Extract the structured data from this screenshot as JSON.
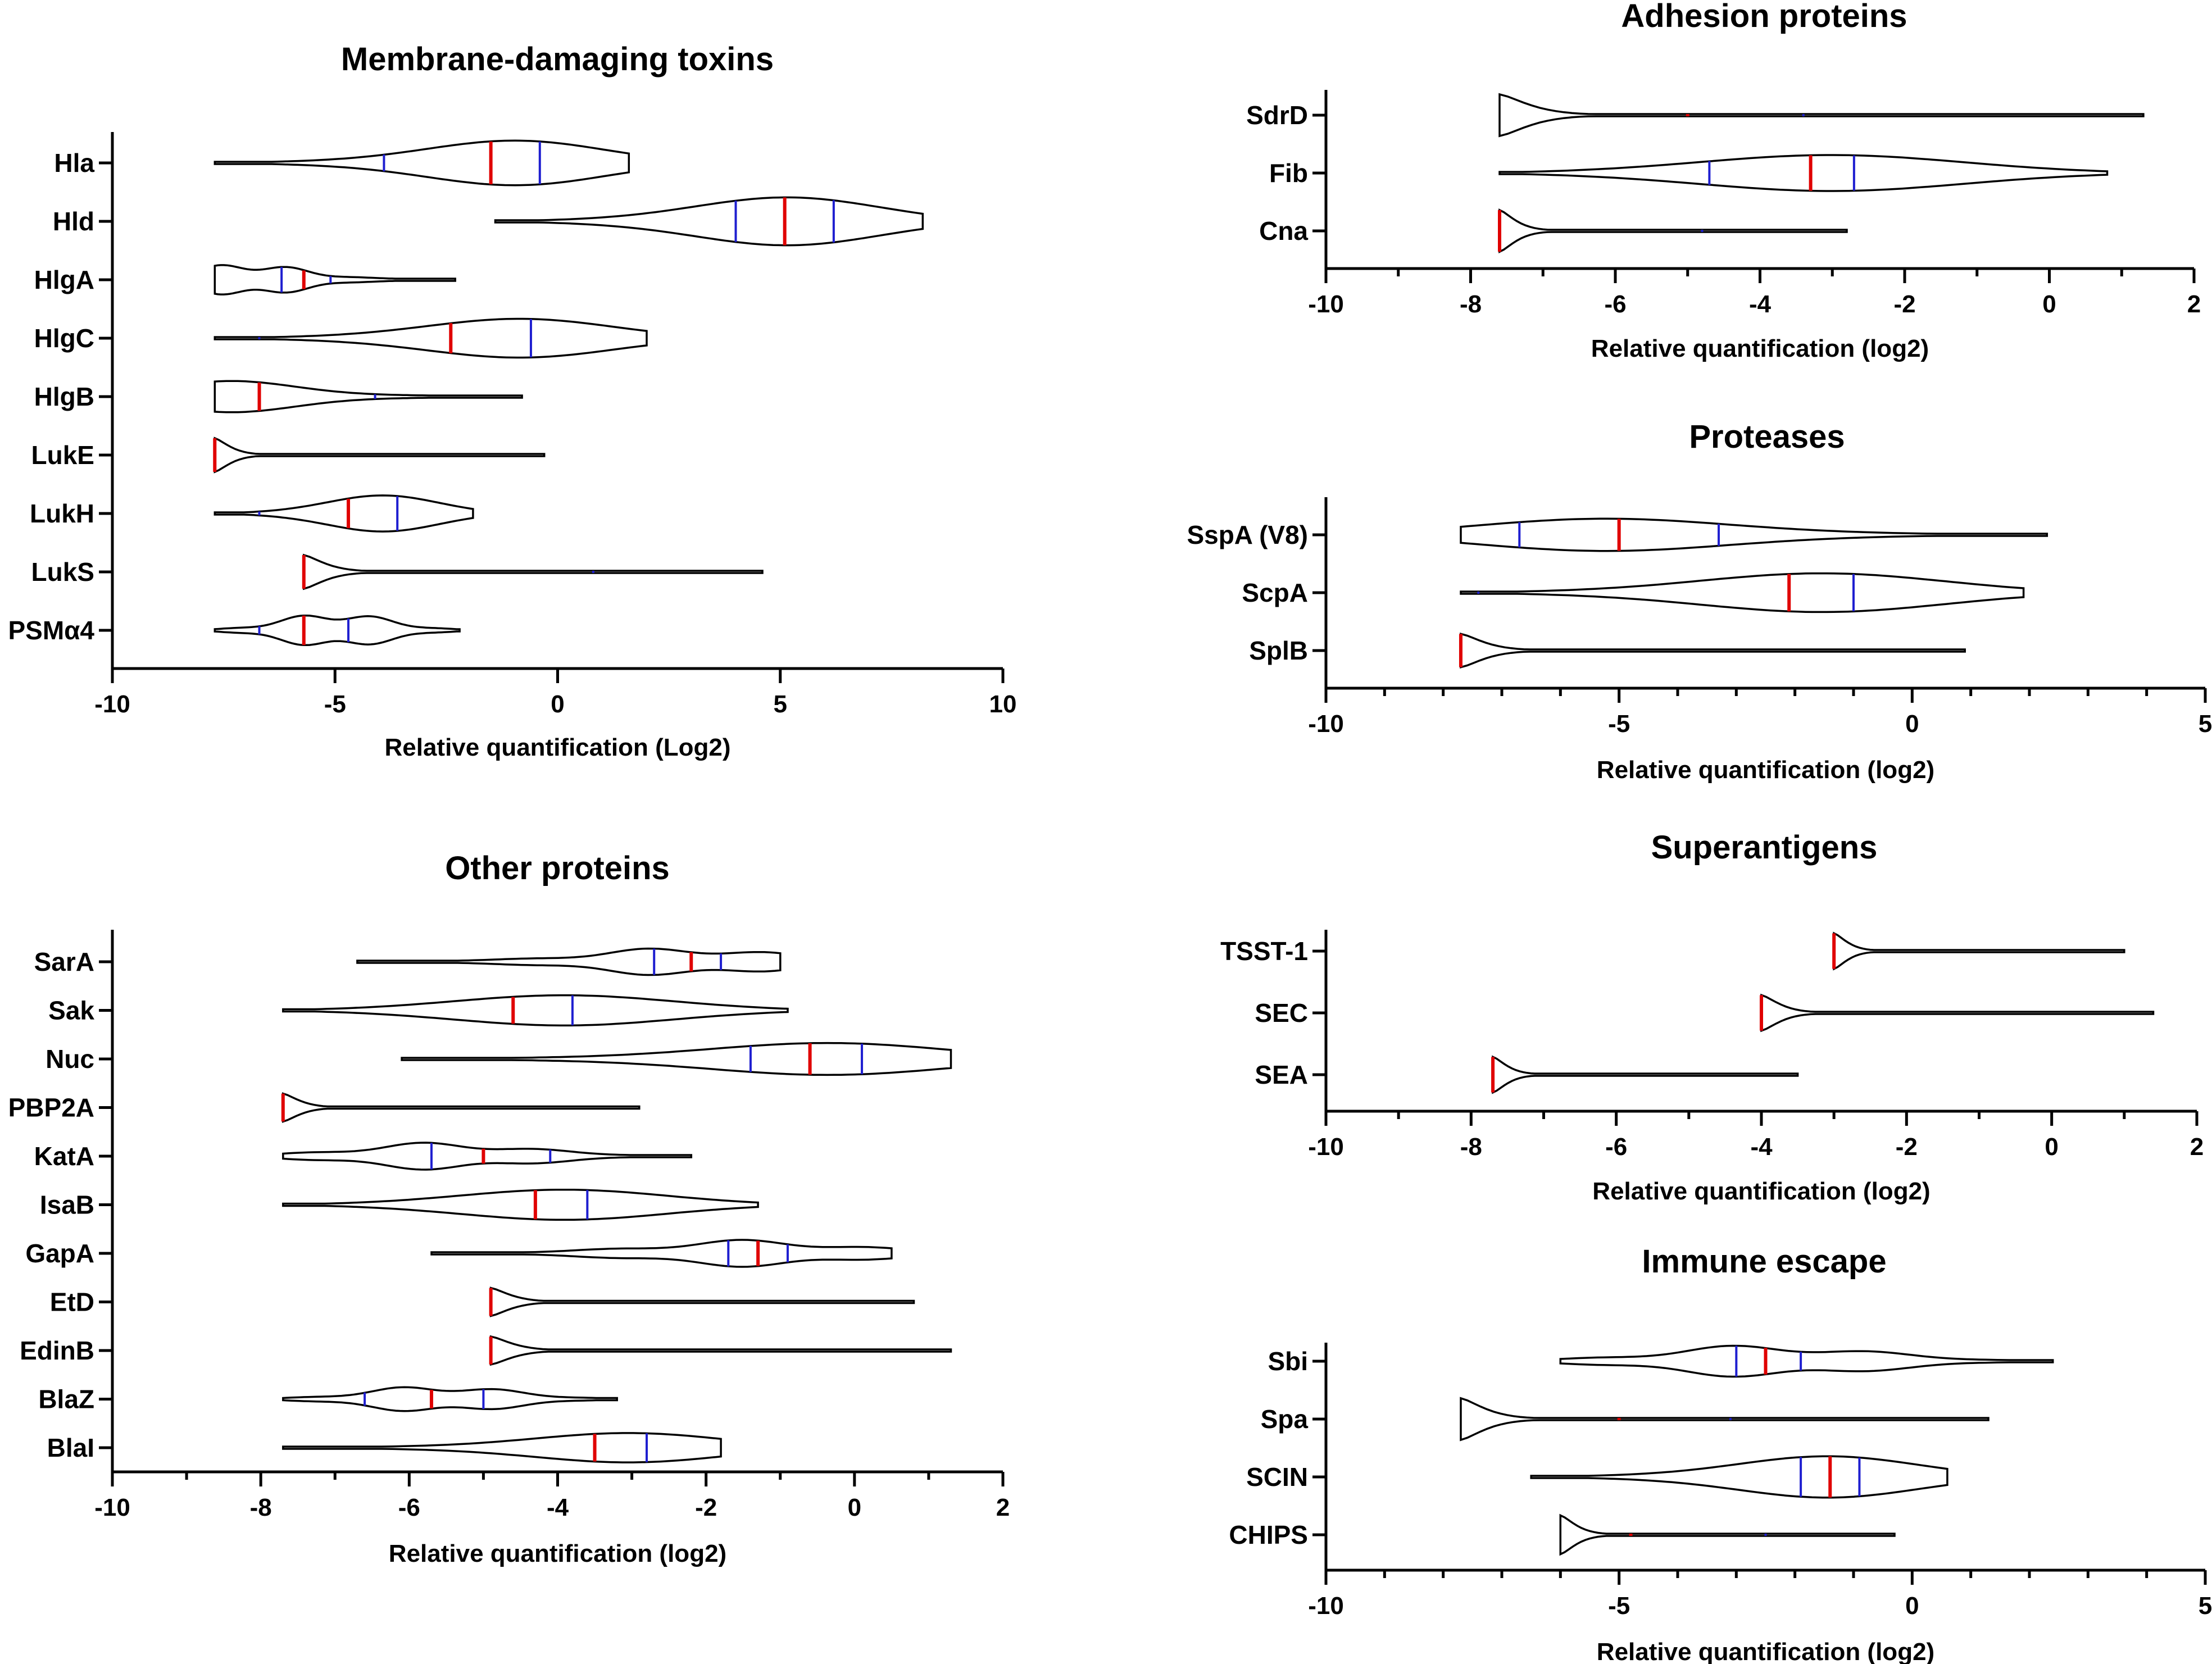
{
  "figure": {
    "colors": {
      "median": "#e00000",
      "quartile": "#1f1fd0",
      "outline": "#000000",
      "background": "#ffffff"
    }
  },
  "chart_data": [
    {
      "id": "membrane",
      "type": "violin",
      "title": "Membrane-damaging toxins",
      "xlabel": "Relative quantification (Log2)",
      "xlim": [
        -10,
        10
      ],
      "xticks": [
        -10,
        -5,
        0,
        5,
        10
      ],
      "tick_labels": [
        "-10",
        "-5",
        "0",
        "5",
        "10"
      ],
      "minor_ticks": 0,
      "series": [
        {
          "name": "Hla",
          "min": -7.7,
          "max": 1.6,
          "q1": -3.9,
          "median": -1.5,
          "q3": -0.4,
          "peak": -0.9,
          "hw": 0.75
        },
        {
          "name": "Hld",
          "min": -1.4,
          "max": 8.2,
          "q1": 4.0,
          "median": 5.1,
          "q3": 6.2,
          "peak": 5.2,
          "hw": 0.8
        },
        {
          "name": "HlgA",
          "min": -7.7,
          "max": -2.3,
          "q1": -6.2,
          "median": -5.7,
          "q3": -5.1,
          "peak": -7.0,
          "hw": 0.6,
          "wavy": true
        },
        {
          "name": "HlgC",
          "min": -7.7,
          "max": 2.0,
          "q1": -6.7,
          "median": -2.4,
          "q3": -0.6,
          "peak": -0.8,
          "hw": 0.65
        },
        {
          "name": "HlgB",
          "min": -7.7,
          "max": -0.8,
          "q1": -6.7,
          "median": -6.7,
          "q3": -4.1,
          "peak": -7.4,
          "hw": 0.55
        },
        {
          "name": "LukE",
          "min": -7.7,
          "max": -0.3,
          "q1": -7.7,
          "median": -7.7,
          "q3": -7.7,
          "peak": -7.7,
          "hw": 0.6,
          "spike": true
        },
        {
          "name": "LukH",
          "min": -7.7,
          "max": -1.9,
          "q1": -6.7,
          "median": -4.7,
          "q3": -3.6,
          "peak": -3.9,
          "hw": 0.6
        },
        {
          "name": "LukS",
          "min": -5.7,
          "max": 4.6,
          "q1": -5.7,
          "median": -5.7,
          "q3": 0.8,
          "peak": -5.7,
          "hw": 0.6,
          "spike": true
        },
        {
          "name": "PSMα4",
          "min": -7.7,
          "max": -2.2,
          "q1": -6.7,
          "median": -5.7,
          "q3": -4.7,
          "peak": -5.0,
          "hw": 0.6,
          "wavy": true
        }
      ]
    },
    {
      "id": "adhesion",
      "type": "violin",
      "title": "Adhesion proteins",
      "xlabel": "Relative quantification (log2)",
      "xlim": [
        -10,
        2
      ],
      "xticks": [
        -10,
        -8,
        -6,
        -4,
        -2,
        0,
        2
      ],
      "tick_labels": [
        "-10",
        "-8",
        "-6",
        "-4",
        "-2",
        "0",
        "2"
      ],
      "minor_ticks": 1,
      "series": [
        {
          "name": "SdrD",
          "min": -7.6,
          "max": 1.3,
          "q1": -5.0,
          "median": -5.0,
          "q3": -3.4,
          "peak": -7.6,
          "hw": 0.75,
          "spike": true
        },
        {
          "name": "Fib",
          "min": -7.6,
          "max": 0.8,
          "q1": -4.7,
          "median": -3.3,
          "q3": -2.7,
          "peak": -3.0,
          "hw": 0.6
        },
        {
          "name": "Cna",
          "min": -7.6,
          "max": -2.8,
          "q1": -7.6,
          "median": -7.6,
          "q3": -4.8,
          "peak": -7.6,
          "hw": 0.75,
          "spike": true
        }
      ]
    },
    {
      "id": "proteases",
      "type": "violin",
      "title": "Proteases",
      "xlabel": "Relative quantification (log2)",
      "xlim": [
        -10,
        5
      ],
      "xticks": [
        -10,
        -5,
        0,
        5
      ],
      "tick_labels": [
        "-10",
        "-5",
        "0",
        "5"
      ],
      "minor_ticks": 4,
      "series": [
        {
          "name": "SspA (V8)",
          "min": -7.7,
          "max": 2.3,
          "q1": -6.7,
          "median": -5.0,
          "q3": -3.3,
          "peak": -5.3,
          "hw": 0.55
        },
        {
          "name": "ScpA",
          "min": -7.7,
          "max": 1.9,
          "q1": -7.4,
          "median": -2.1,
          "q3": -1.0,
          "peak": -1.5,
          "hw": 0.65
        },
        {
          "name": "SplB",
          "min": -7.7,
          "max": 0.9,
          "q1": -7.7,
          "median": -7.7,
          "q3": -7.7,
          "peak": -7.7,
          "hw": 0.6,
          "spike": true
        }
      ]
    },
    {
      "id": "superantigens",
      "type": "violin",
      "title": "Superantigens",
      "xlabel": "Relative quantification (log2)",
      "xlim": [
        -10,
        2
      ],
      "xticks": [
        -10,
        -8,
        -6,
        -4,
        -2,
        0,
        2
      ],
      "tick_labels": [
        "-10",
        "-8",
        "-6",
        "-4",
        "-2",
        "0",
        "2"
      ],
      "minor_ticks": 1,
      "series": [
        {
          "name": "TSST-1",
          "min": -3.0,
          "max": 1.0,
          "q1": -3.0,
          "median": -3.0,
          "q3": -3.0,
          "peak": -3.0,
          "hw": 0.6,
          "spike": true
        },
        {
          "name": "SEC",
          "min": -4.0,
          "max": 1.4,
          "q1": -4.0,
          "median": -4.0,
          "q3": -4.0,
          "peak": -4.0,
          "hw": 0.6,
          "spike": true
        },
        {
          "name": "SEA",
          "min": -7.7,
          "max": -3.5,
          "q1": -7.7,
          "median": -7.7,
          "q3": -7.7,
          "peak": -7.7,
          "hw": 0.6,
          "spike": true
        }
      ]
    },
    {
      "id": "immune",
      "type": "violin",
      "title": "Immune escape",
      "xlabel": "Relative quantification (log2)",
      "xlim": [
        -10,
        5
      ],
      "xticks": [
        -10,
        -5,
        0,
        5
      ],
      "tick_labels": [
        "-10",
        "-5",
        "0",
        "5"
      ],
      "minor_ticks": 4,
      "series": [
        {
          "name": "Sbi",
          "min": -6.0,
          "max": 2.4,
          "q1": -3.0,
          "median": -2.5,
          "q3": -1.9,
          "peak": -2.5,
          "hw": 0.55,
          "wavy": true
        },
        {
          "name": "Spa",
          "min": -7.7,
          "max": 1.3,
          "q1": -5.0,
          "median": -5.0,
          "q3": -3.1,
          "peak": -7.7,
          "hw": 0.75,
          "spike": true
        },
        {
          "name": "SCIN",
          "min": -6.5,
          "max": 0.6,
          "q1": -1.9,
          "median": -1.4,
          "q3": -0.9,
          "peak": -1.4,
          "hw": 0.7
        },
        {
          "name": "CHIPS",
          "min": -6.0,
          "max": -0.3,
          "q1": -4.8,
          "median": -4.8,
          "q3": -2.5,
          "peak": -6.0,
          "hw": 0.7,
          "spike": true
        }
      ]
    },
    {
      "id": "other",
      "type": "violin",
      "title": "Other proteins",
      "xlabel": "Relative quantification (log2)",
      "xlim": [
        -10,
        2
      ],
      "xticks": [
        -10,
        -8,
        -6,
        -4,
        -2,
        0,
        2
      ],
      "tick_labels": [
        "-10",
        "-8",
        "-6",
        "-4",
        "-2",
        "0",
        "2"
      ],
      "minor_ticks": 1,
      "series": [
        {
          "name": "SarA",
          "min": -6.7,
          "max": -1.0,
          "q1": -2.7,
          "median": -2.2,
          "q3": -1.8,
          "peak": -2.2,
          "hw": 0.6,
          "wavy": true
        },
        {
          "name": "Sak",
          "min": -7.7,
          "max": -0.9,
          "q1": -4.6,
          "median": -4.6,
          "q3": -3.8,
          "peak": -3.9,
          "hw": 0.6
        },
        {
          "name": "Nuc",
          "min": -6.1,
          "max": 1.3,
          "q1": -1.4,
          "median": -0.6,
          "q3": 0.1,
          "peak": -0.3,
          "hw": 0.65
        },
        {
          "name": "PBP2A",
          "min": -7.7,
          "max": -2.9,
          "q1": -7.7,
          "median": -7.7,
          "q3": -7.7,
          "peak": -7.7,
          "hw": 0.6,
          "spike": true
        },
        {
          "name": "KatA",
          "min": -7.7,
          "max": -2.2,
          "q1": -5.7,
          "median": -5.0,
          "q3": -4.1,
          "peak": -5.6,
          "hw": 0.55,
          "wavy": true
        },
        {
          "name": "IsaB",
          "min": -7.7,
          "max": -1.3,
          "q1": -4.3,
          "median": -4.3,
          "q3": -3.6,
          "peak": -3.9,
          "hw": 0.6
        },
        {
          "name": "GapA",
          "min": -5.7,
          "max": 0.5,
          "q1": -1.7,
          "median": -1.3,
          "q3": -0.9,
          "peak": -1.3,
          "hw": 0.55,
          "wavy": true
        },
        {
          "name": "EtD",
          "min": -4.9,
          "max": 0.8,
          "q1": -4.9,
          "median": -4.9,
          "q3": -4.9,
          "peak": -4.9,
          "hw": 0.6,
          "spike": true
        },
        {
          "name": "EdinB",
          "min": -4.9,
          "max": 1.3,
          "q1": -4.9,
          "median": -4.9,
          "q3": -4.9,
          "peak": -4.9,
          "hw": 0.6,
          "spike": true
        },
        {
          "name": "BlaZ",
          "min": -7.7,
          "max": -3.2,
          "q1": -6.6,
          "median": -5.7,
          "q3": -5.0,
          "peak": -5.6,
          "hw": 0.55,
          "wavy": true
        },
        {
          "name": "BlaI",
          "min": -7.7,
          "max": -1.8,
          "q1": -3.5,
          "median": -3.5,
          "q3": -2.8,
          "peak": -3.0,
          "hw": 0.6
        }
      ]
    }
  ]
}
